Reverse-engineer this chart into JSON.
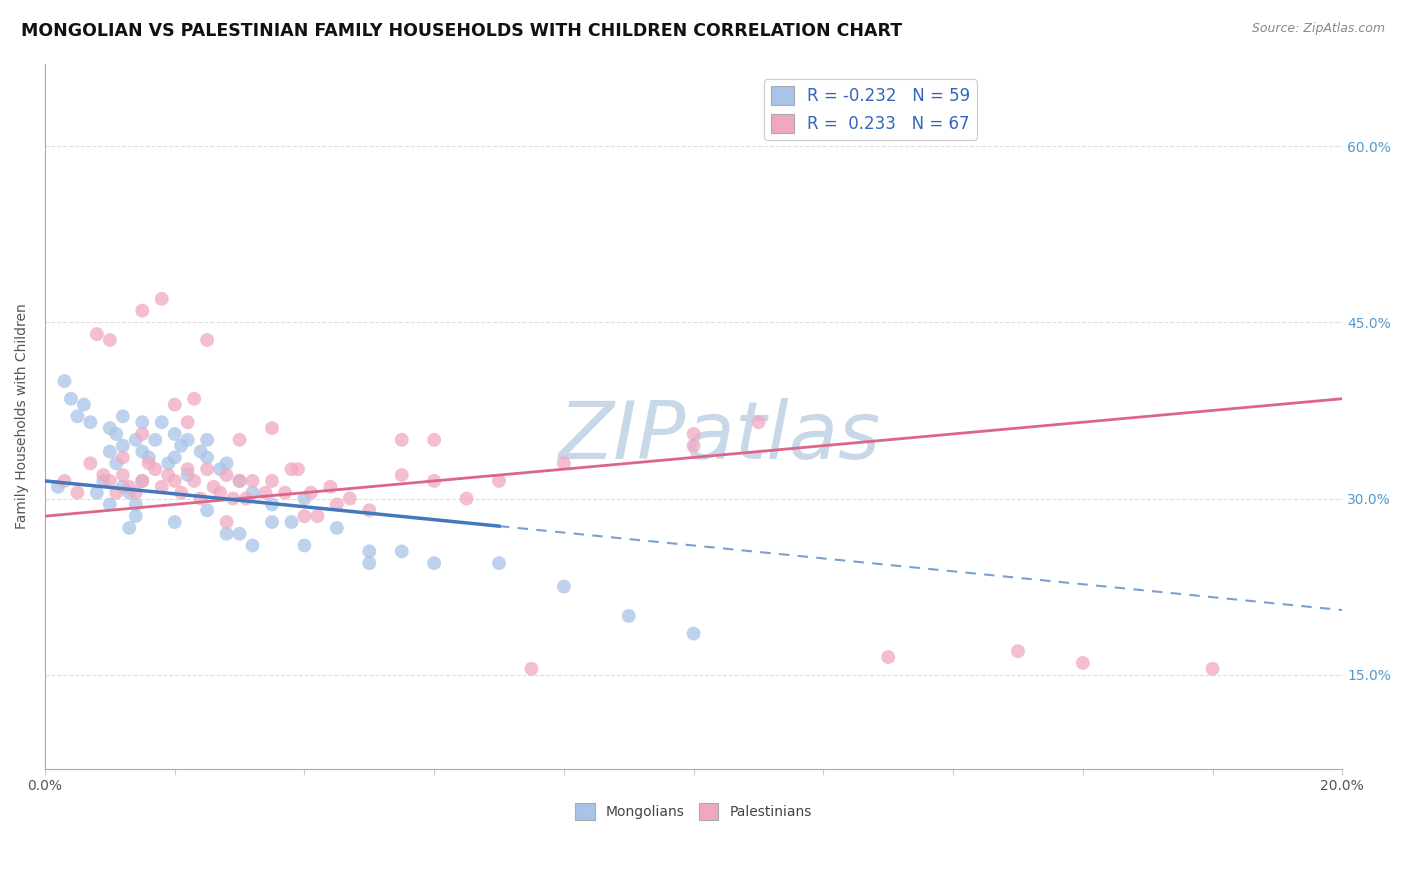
{
  "title": "MONGOLIAN VS PALESTINIAN FAMILY HOUSEHOLDS WITH CHILDREN CORRELATION CHART",
  "source": "Source: ZipAtlas.com",
  "ylabel": "Family Households with Children",
  "x_min": 0.0,
  "x_max": 20.0,
  "y_min": 7.0,
  "y_max": 67.0,
  "x_ticks": [
    0.0,
    2.0,
    4.0,
    6.0,
    8.0,
    10.0,
    12.0,
    14.0,
    16.0,
    18.0,
    20.0
  ],
  "x_tick_labels": [
    "0.0%",
    "",
    "",
    "",
    "",
    "",
    "",
    "",
    "",
    "",
    "20.0%"
  ],
  "y_ticks_right": [
    15.0,
    30.0,
    45.0,
    60.0
  ],
  "y_tick_labels_right": [
    "15.0%",
    "30.0%",
    "45.0%",
    "60.0%"
  ],
  "legend_mongolian": "R = -0.232   N = 59",
  "legend_palestinian": "R =  0.233   N = 67",
  "mongolian_color": "#a8c4e8",
  "palestinian_color": "#f0a8c0",
  "mongolian_line_color": "#4477bb",
  "palestinian_line_color": "#dd6688",
  "watermark": "ZIPatlas",
  "watermark_color": "#c8d8e8",
  "background_color": "#ffffff",
  "grid_color": "#dddddd",
  "mon_trend_x0": 0.0,
  "mon_trend_y0": 31.5,
  "mon_trend_x1": 20.0,
  "mon_trend_y1": 20.5,
  "pal_trend_x0": 0.0,
  "pal_trend_y0": 28.5,
  "pal_trend_x1": 20.0,
  "pal_trend_y1": 38.5,
  "mon_solid_x_end": 7.0,
  "mongolians_x": [
    0.2,
    0.3,
    0.4,
    0.5,
    0.6,
    0.7,
    0.8,
    0.9,
    1.0,
    1.0,
    1.1,
    1.1,
    1.2,
    1.2,
    1.3,
    1.4,
    1.5,
    1.5,
    1.6,
    1.7,
    1.8,
    1.9,
    2.0,
    2.1,
    2.2,
    2.4,
    2.5,
    2.7,
    2.8,
    3.0,
    3.2,
    3.5,
    3.8,
    4.0,
    4.5,
    5.0,
    5.5,
    6.0,
    7.0,
    8.0,
    9.0,
    10.0,
    1.3,
    1.4,
    1.5,
    2.0,
    2.2,
    2.5,
    2.8,
    3.2,
    3.5,
    1.0,
    1.2,
    1.4,
    2.0,
    2.5,
    3.0,
    4.0,
    5.0
  ],
  "mongolians_y": [
    31.0,
    40.0,
    38.5,
    37.0,
    38.0,
    36.5,
    30.5,
    31.5,
    34.0,
    36.0,
    35.5,
    33.0,
    34.5,
    37.0,
    30.5,
    35.0,
    36.5,
    34.0,
    33.5,
    35.0,
    36.5,
    33.0,
    35.5,
    34.5,
    35.0,
    34.0,
    33.5,
    32.5,
    33.0,
    31.5,
    30.5,
    29.5,
    28.0,
    30.0,
    27.5,
    25.5,
    25.5,
    24.5,
    24.5,
    22.5,
    20.0,
    18.5,
    27.5,
    28.5,
    31.5,
    28.0,
    32.0,
    29.0,
    27.0,
    26.0,
    28.0,
    29.5,
    31.0,
    29.5,
    33.5,
    35.0,
    27.0,
    26.0,
    24.5
  ],
  "palestinians_x": [
    0.3,
    0.5,
    0.7,
    0.9,
    1.0,
    1.1,
    1.2,
    1.3,
    1.4,
    1.5,
    1.6,
    1.7,
    1.8,
    1.9,
    2.0,
    2.1,
    2.2,
    2.3,
    2.4,
    2.5,
    2.6,
    2.7,
    2.8,
    2.9,
    3.0,
    3.1,
    3.2,
    3.4,
    3.5,
    3.7,
    3.9,
    4.1,
    4.4,
    4.7,
    5.0,
    5.5,
    6.0,
    6.5,
    7.0,
    8.0,
    10.0,
    11.0,
    13.0,
    16.0,
    18.0,
    1.5,
    2.5,
    3.5,
    1.8,
    2.3,
    3.8,
    4.5,
    5.5,
    1.2,
    2.0,
    1.0,
    3.0,
    4.0,
    2.8,
    4.2,
    6.0,
    7.5,
    10.0,
    15.0,
    0.8,
    1.5,
    2.2
  ],
  "palestinians_y": [
    31.5,
    30.5,
    33.0,
    32.0,
    31.5,
    30.5,
    32.0,
    31.0,
    30.5,
    31.5,
    33.0,
    32.5,
    31.0,
    32.0,
    31.5,
    30.5,
    32.5,
    31.5,
    30.0,
    32.5,
    31.0,
    30.5,
    32.0,
    30.0,
    31.5,
    30.0,
    31.5,
    30.5,
    31.5,
    30.5,
    32.5,
    30.5,
    31.0,
    30.0,
    29.0,
    32.0,
    31.5,
    30.0,
    31.5,
    33.0,
    34.5,
    36.5,
    16.5,
    16.0,
    15.5,
    46.0,
    43.5,
    36.0,
    47.0,
    38.5,
    32.5,
    29.5,
    35.0,
    33.5,
    38.0,
    43.5,
    35.0,
    28.5,
    28.0,
    28.5,
    35.0,
    15.5,
    35.5,
    17.0,
    44.0,
    35.5,
    36.5
  ]
}
